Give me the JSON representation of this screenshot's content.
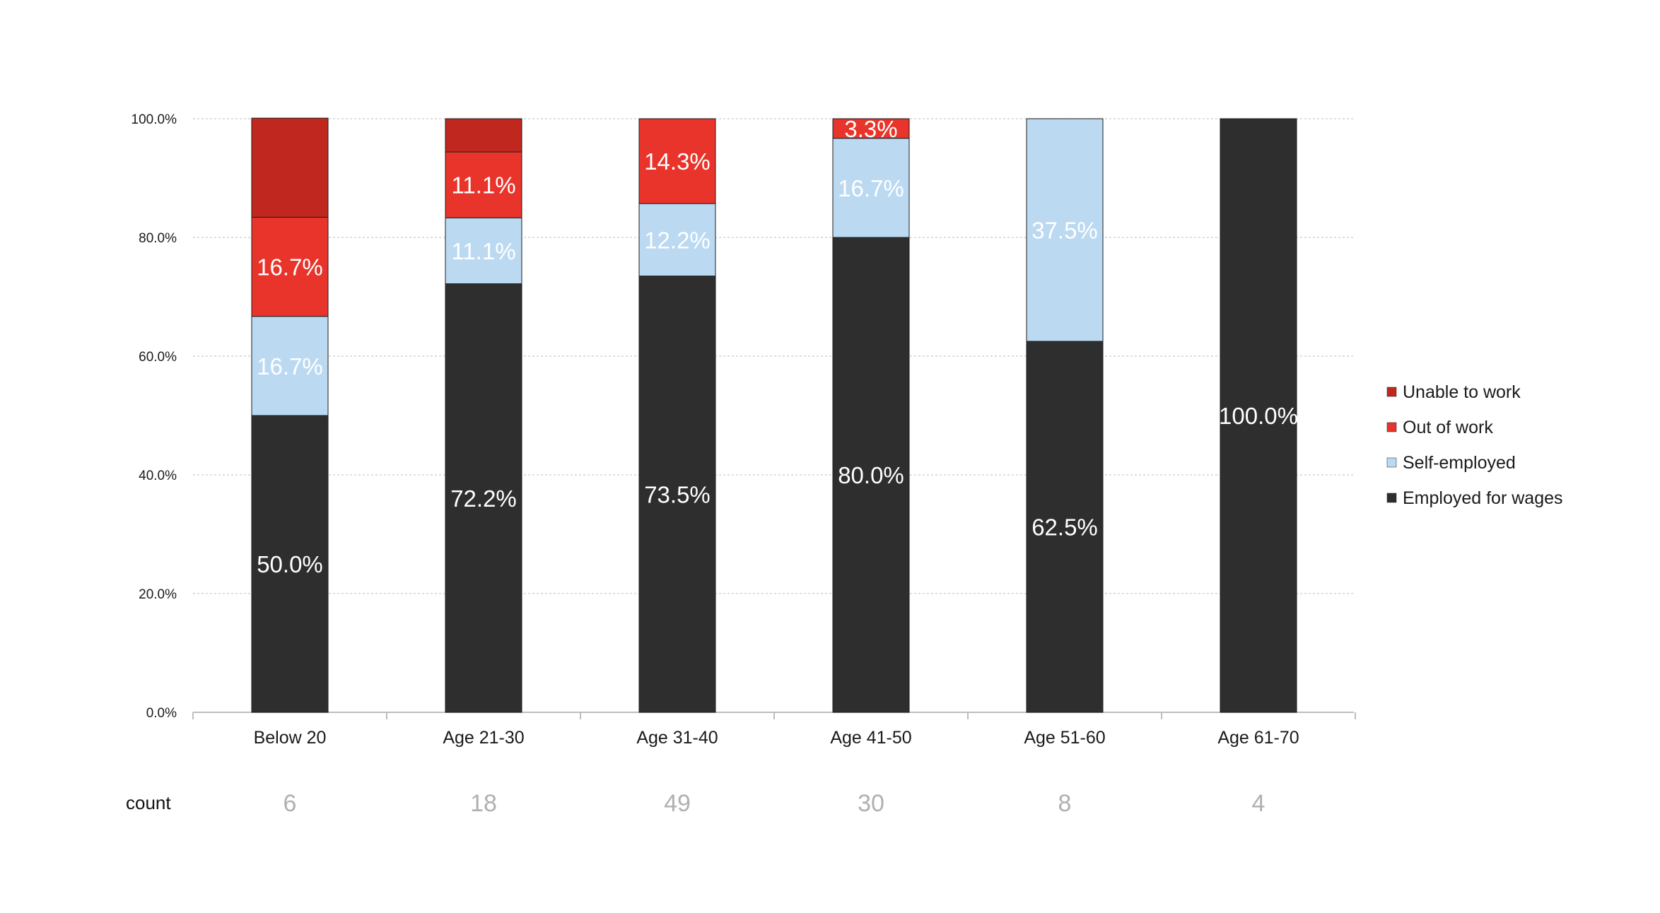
{
  "chart_data": {
    "type": "bar",
    "stacked": true,
    "categories": [
      "Below 20",
      "Age 21-30",
      "Age 31-40",
      "Age 41-50",
      "Age 51-60",
      "Age 61-70"
    ],
    "series": [
      {
        "name": "Employed for wages",
        "values": [
          50.0,
          72.2,
          73.5,
          80.0,
          62.5,
          100.0
        ],
        "color": "#2e2e2e",
        "labels": [
          "50.0%",
          "72.2%",
          "73.5%",
          "80.0%",
          "62.5%",
          "100.0%"
        ],
        "label_color": "#ffffff"
      },
      {
        "name": "Self-employed",
        "values": [
          16.7,
          11.1,
          12.2,
          16.7,
          37.5,
          0
        ],
        "color": "#bcd9f2",
        "labels": [
          "16.7%",
          "11.1%",
          "12.2%",
          "16.7%",
          "37.5%",
          ""
        ],
        "label_color": "#ffffff"
      },
      {
        "name": "Out of work",
        "values": [
          16.7,
          11.1,
          14.3,
          3.3,
          0,
          0
        ],
        "color": "#e8342a",
        "labels": [
          "16.7%",
          "11.1%",
          "14.3%",
          "3.3%",
          "",
          ""
        ],
        "label_color": "#ffffff"
      },
      {
        "name": "Unable to work",
        "values": [
          16.7,
          5.6,
          0,
          0,
          0,
          0
        ],
        "color": "#c0271f",
        "labels": [
          "",
          "",
          "",
          "",
          "",
          ""
        ],
        "label_color": "#ffffff"
      }
    ],
    "ylim": [
      0,
      100
    ],
    "yticks": [
      "0.0%",
      "20.0%",
      "40.0%",
      "60.0%",
      "80.0%",
      "100.0%"
    ],
    "grid": true,
    "legend_position": "right",
    "count_label": "count",
    "counts": [
      "6",
      "18",
      "49",
      "30",
      "8",
      "4"
    ]
  }
}
